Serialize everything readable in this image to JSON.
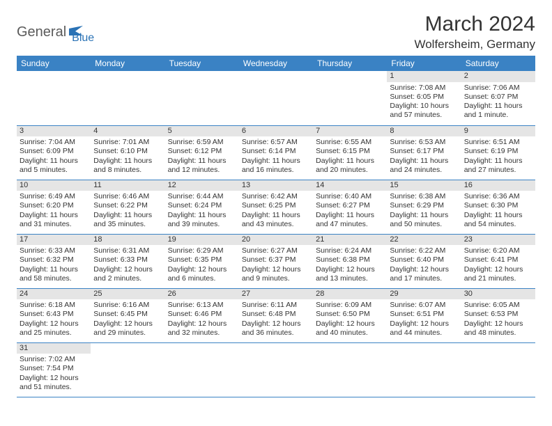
{
  "logo": {
    "part1": "General",
    "part2": "Blue"
  },
  "title": "March 2024",
  "location": "Wolfersheim, Germany",
  "colors": {
    "header_bg": "#3a82c4",
    "header_text": "#ffffff",
    "daynum_bg": "#e5e5e5",
    "border": "#3a82c4",
    "text": "#333333",
    "logo_gray": "#5a5a5a",
    "logo_blue": "#2a72b5"
  },
  "weekdays": [
    "Sunday",
    "Monday",
    "Tuesday",
    "Wednesday",
    "Thursday",
    "Friday",
    "Saturday"
  ],
  "weeks": [
    [
      null,
      null,
      null,
      null,
      null,
      {
        "n": "1",
        "sr": "Sunrise: 7:08 AM",
        "ss": "Sunset: 6:05 PM",
        "dl": "Daylight: 10 hours and 57 minutes."
      },
      {
        "n": "2",
        "sr": "Sunrise: 7:06 AM",
        "ss": "Sunset: 6:07 PM",
        "dl": "Daylight: 11 hours and 1 minute."
      }
    ],
    [
      {
        "n": "3",
        "sr": "Sunrise: 7:04 AM",
        "ss": "Sunset: 6:09 PM",
        "dl": "Daylight: 11 hours and 5 minutes."
      },
      {
        "n": "4",
        "sr": "Sunrise: 7:01 AM",
        "ss": "Sunset: 6:10 PM",
        "dl": "Daylight: 11 hours and 8 minutes."
      },
      {
        "n": "5",
        "sr": "Sunrise: 6:59 AM",
        "ss": "Sunset: 6:12 PM",
        "dl": "Daylight: 11 hours and 12 minutes."
      },
      {
        "n": "6",
        "sr": "Sunrise: 6:57 AM",
        "ss": "Sunset: 6:14 PM",
        "dl": "Daylight: 11 hours and 16 minutes."
      },
      {
        "n": "7",
        "sr": "Sunrise: 6:55 AM",
        "ss": "Sunset: 6:15 PM",
        "dl": "Daylight: 11 hours and 20 minutes."
      },
      {
        "n": "8",
        "sr": "Sunrise: 6:53 AM",
        "ss": "Sunset: 6:17 PM",
        "dl": "Daylight: 11 hours and 24 minutes."
      },
      {
        "n": "9",
        "sr": "Sunrise: 6:51 AM",
        "ss": "Sunset: 6:19 PM",
        "dl": "Daylight: 11 hours and 27 minutes."
      }
    ],
    [
      {
        "n": "10",
        "sr": "Sunrise: 6:49 AM",
        "ss": "Sunset: 6:20 PM",
        "dl": "Daylight: 11 hours and 31 minutes."
      },
      {
        "n": "11",
        "sr": "Sunrise: 6:46 AM",
        "ss": "Sunset: 6:22 PM",
        "dl": "Daylight: 11 hours and 35 minutes."
      },
      {
        "n": "12",
        "sr": "Sunrise: 6:44 AM",
        "ss": "Sunset: 6:24 PM",
        "dl": "Daylight: 11 hours and 39 minutes."
      },
      {
        "n": "13",
        "sr": "Sunrise: 6:42 AM",
        "ss": "Sunset: 6:25 PM",
        "dl": "Daylight: 11 hours and 43 minutes."
      },
      {
        "n": "14",
        "sr": "Sunrise: 6:40 AM",
        "ss": "Sunset: 6:27 PM",
        "dl": "Daylight: 11 hours and 47 minutes."
      },
      {
        "n": "15",
        "sr": "Sunrise: 6:38 AM",
        "ss": "Sunset: 6:29 PM",
        "dl": "Daylight: 11 hours and 50 minutes."
      },
      {
        "n": "16",
        "sr": "Sunrise: 6:36 AM",
        "ss": "Sunset: 6:30 PM",
        "dl": "Daylight: 11 hours and 54 minutes."
      }
    ],
    [
      {
        "n": "17",
        "sr": "Sunrise: 6:33 AM",
        "ss": "Sunset: 6:32 PM",
        "dl": "Daylight: 11 hours and 58 minutes."
      },
      {
        "n": "18",
        "sr": "Sunrise: 6:31 AM",
        "ss": "Sunset: 6:33 PM",
        "dl": "Daylight: 12 hours and 2 minutes."
      },
      {
        "n": "19",
        "sr": "Sunrise: 6:29 AM",
        "ss": "Sunset: 6:35 PM",
        "dl": "Daylight: 12 hours and 6 minutes."
      },
      {
        "n": "20",
        "sr": "Sunrise: 6:27 AM",
        "ss": "Sunset: 6:37 PM",
        "dl": "Daylight: 12 hours and 9 minutes."
      },
      {
        "n": "21",
        "sr": "Sunrise: 6:24 AM",
        "ss": "Sunset: 6:38 PM",
        "dl": "Daylight: 12 hours and 13 minutes."
      },
      {
        "n": "22",
        "sr": "Sunrise: 6:22 AM",
        "ss": "Sunset: 6:40 PM",
        "dl": "Daylight: 12 hours and 17 minutes."
      },
      {
        "n": "23",
        "sr": "Sunrise: 6:20 AM",
        "ss": "Sunset: 6:41 PM",
        "dl": "Daylight: 12 hours and 21 minutes."
      }
    ],
    [
      {
        "n": "24",
        "sr": "Sunrise: 6:18 AM",
        "ss": "Sunset: 6:43 PM",
        "dl": "Daylight: 12 hours and 25 minutes."
      },
      {
        "n": "25",
        "sr": "Sunrise: 6:16 AM",
        "ss": "Sunset: 6:45 PM",
        "dl": "Daylight: 12 hours and 29 minutes."
      },
      {
        "n": "26",
        "sr": "Sunrise: 6:13 AM",
        "ss": "Sunset: 6:46 PM",
        "dl": "Daylight: 12 hours and 32 minutes."
      },
      {
        "n": "27",
        "sr": "Sunrise: 6:11 AM",
        "ss": "Sunset: 6:48 PM",
        "dl": "Daylight: 12 hours and 36 minutes."
      },
      {
        "n": "28",
        "sr": "Sunrise: 6:09 AM",
        "ss": "Sunset: 6:50 PM",
        "dl": "Daylight: 12 hours and 40 minutes."
      },
      {
        "n": "29",
        "sr": "Sunrise: 6:07 AM",
        "ss": "Sunset: 6:51 PM",
        "dl": "Daylight: 12 hours and 44 minutes."
      },
      {
        "n": "30",
        "sr": "Sunrise: 6:05 AM",
        "ss": "Sunset: 6:53 PM",
        "dl": "Daylight: 12 hours and 48 minutes."
      }
    ],
    [
      {
        "n": "31",
        "sr": "Sunrise: 7:02 AM",
        "ss": "Sunset: 7:54 PM",
        "dl": "Daylight: 12 hours and 51 minutes."
      },
      null,
      null,
      null,
      null,
      null,
      null
    ]
  ]
}
